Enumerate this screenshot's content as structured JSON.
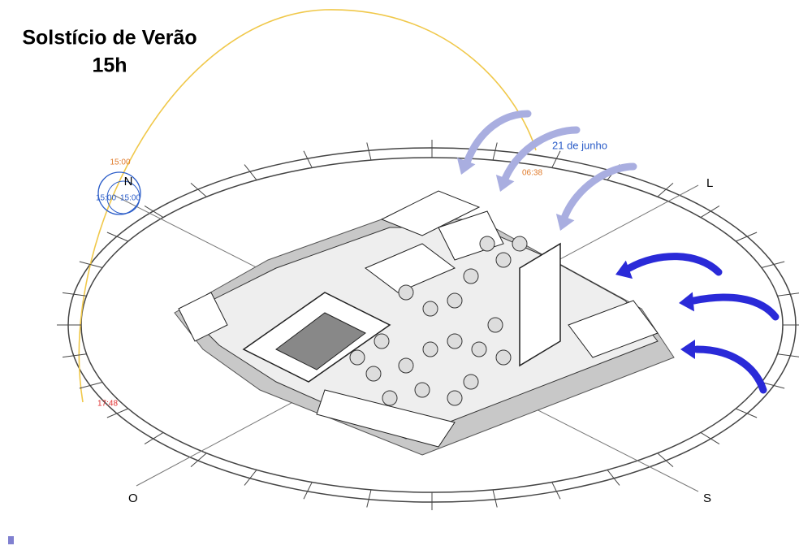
{
  "title": {
    "line1": "Solstício de Verão",
    "line2": "15h"
  },
  "sun_path": {
    "current_time": "15:00",
    "sunrise": "06:38",
    "sunset": "17:48",
    "date": "21 de junho"
  },
  "compass": {
    "north": "N",
    "time_a": "15:00",
    "time_b": "15:00",
    "east": "L",
    "west": "O",
    "south": "S"
  }
}
